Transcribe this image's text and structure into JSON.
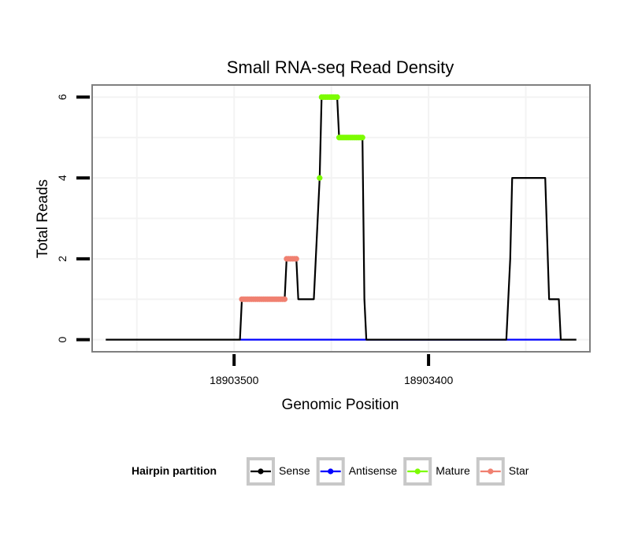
{
  "chart_data": {
    "type": "line",
    "title": "Small RNA-seq Read Density",
    "xlabel": "Genomic Position",
    "ylabel": "Total Reads",
    "x_reversed": true,
    "xlim": [
      18903573,
      18903317
    ],
    "ylim": [
      -0.3,
      6.3
    ],
    "x_ticks": [
      18903500,
      18903400
    ],
    "x_tick_labels": [
      "18903500",
      "18903400"
    ],
    "y_ticks": [
      0,
      2,
      4,
      6
    ],
    "y_tick_labels": [
      "0",
      "2",
      "4",
      "6"
    ],
    "legend": {
      "title": "Hairpin partition",
      "placement": "bottom",
      "entries": [
        "Sense",
        "Antisense",
        "Mature",
        "Star"
      ]
    },
    "series": [
      {
        "name": "Sense",
        "color": "#000000",
        "style": "line",
        "points": [
          [
            18903566,
            0
          ],
          [
            18903497,
            0
          ],
          [
            18903496,
            1
          ],
          [
            18903474,
            1
          ],
          [
            18903473,
            2
          ],
          [
            18903468,
            2
          ],
          [
            18903467,
            1
          ],
          [
            18903459,
            1
          ],
          [
            18903458,
            2
          ],
          [
            18903456,
            4
          ],
          [
            18903455,
            6
          ],
          [
            18903447,
            6
          ],
          [
            18903446,
            5
          ],
          [
            18903434,
            5
          ],
          [
            18903433,
            1
          ],
          [
            18903432,
            0
          ],
          [
            18903360,
            0
          ],
          [
            18903358,
            2
          ],
          [
            18903357,
            4
          ],
          [
            18903340,
            4
          ],
          [
            18903338,
            1
          ],
          [
            18903333,
            1
          ],
          [
            18903332,
            0
          ],
          [
            18903324,
            0
          ]
        ]
      },
      {
        "name": "Antisense",
        "color": "#0000ff",
        "style": "line",
        "points": [
          [
            18903497,
            0
          ],
          [
            18903332,
            0
          ]
        ]
      },
      {
        "name": "Mature",
        "color": "#7cfc00",
        "style": "markers",
        "points": [
          [
            18903456,
            4
          ],
          [
            18903455,
            6
          ],
          [
            18903454,
            6
          ],
          [
            18903453,
            6
          ],
          [
            18903452,
            6
          ],
          [
            18903451,
            6
          ],
          [
            18903450,
            6
          ],
          [
            18903449,
            6
          ],
          [
            18903448,
            6
          ],
          [
            18903447,
            6
          ],
          [
            18903446,
            5
          ],
          [
            18903445,
            5
          ],
          [
            18903444,
            5
          ],
          [
            18903443,
            5
          ],
          [
            18903442,
            5
          ],
          [
            18903441,
            5
          ],
          [
            18903440,
            5
          ],
          [
            18903439,
            5
          ],
          [
            18903438,
            5
          ],
          [
            18903437,
            5
          ],
          [
            18903436,
            5
          ],
          [
            18903435,
            5
          ],
          [
            18903434,
            5
          ]
        ]
      },
      {
        "name": "Star",
        "color": "#f08070",
        "style": "markers",
        "points": [
          [
            18903496,
            1
          ],
          [
            18903495,
            1
          ],
          [
            18903494,
            1
          ],
          [
            18903493,
            1
          ],
          [
            18903492,
            1
          ],
          [
            18903491,
            1
          ],
          [
            18903490,
            1
          ],
          [
            18903489,
            1
          ],
          [
            18903488,
            1
          ],
          [
            18903487,
            1
          ],
          [
            18903486,
            1
          ],
          [
            18903485,
            1
          ],
          [
            18903484,
            1
          ],
          [
            18903483,
            1
          ],
          [
            18903482,
            1
          ],
          [
            18903481,
            1
          ],
          [
            18903480,
            1
          ],
          [
            18903479,
            1
          ],
          [
            18903478,
            1
          ],
          [
            18903477,
            1
          ],
          [
            18903476,
            1
          ],
          [
            18903475,
            1
          ],
          [
            18903474,
            1
          ],
          [
            18903473,
            2
          ],
          [
            18903472,
            2
          ],
          [
            18903471,
            2
          ],
          [
            18903470,
            2
          ],
          [
            18903469,
            2
          ],
          [
            18903468,
            2
          ]
        ]
      }
    ]
  }
}
